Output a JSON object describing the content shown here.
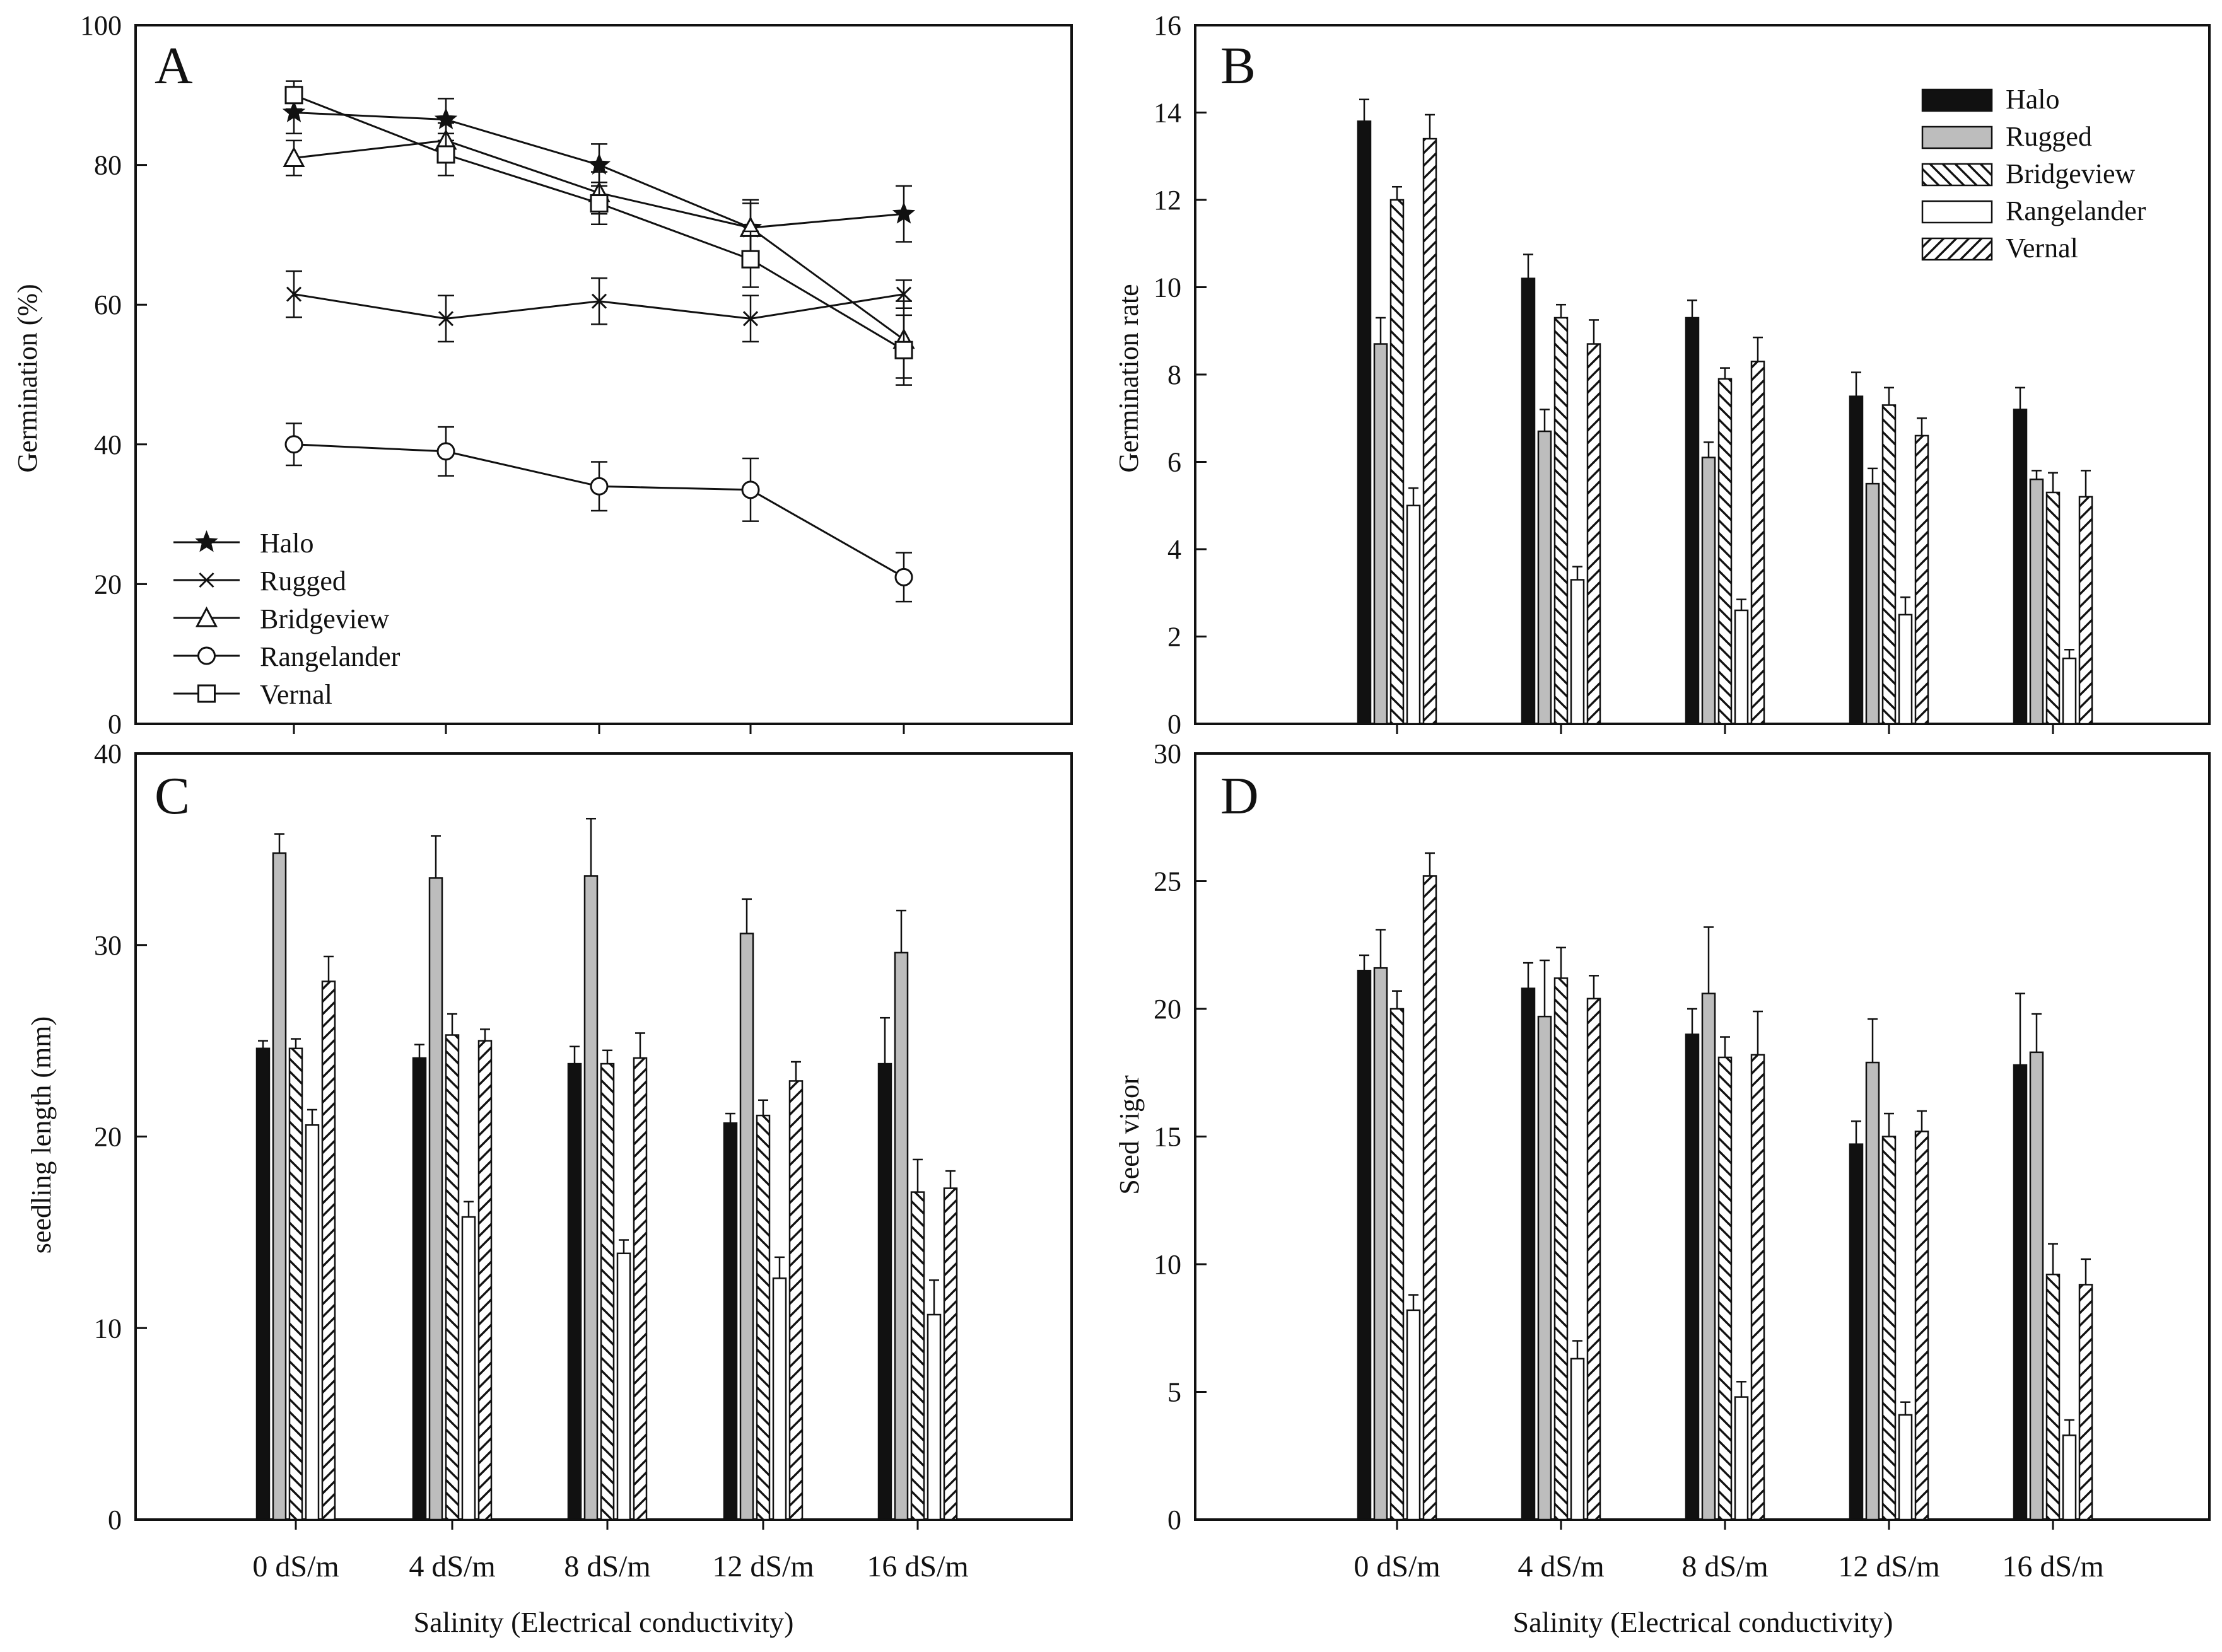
{
  "xlabel": "Salinity (Electrical conductivity)",
  "cultivars": [
    "Halo",
    "Rugged",
    "Bridgeview",
    "Rangelander",
    "Vernal"
  ],
  "colors": {
    "ink": "#111111",
    "gray_fill": "#bdbdbd",
    "white": "#ffffff"
  },
  "chart_data": [
    {
      "panel": "A",
      "type": "line",
      "ylabel": "Germination (%)",
      "ylim": [
        0,
        100
      ],
      "yticks": [
        0,
        20,
        40,
        60,
        80,
        100
      ],
      "categories": [
        "0 dS/m",
        "4 dS/m",
        "8 dS/m",
        "12 dS/m",
        "16 dS/m"
      ],
      "legend_position": "bottom-left",
      "series": [
        {
          "name": "Halo",
          "marker": "star",
          "values": [
            87.5,
            86.5,
            80,
            71,
            73
          ],
          "errors": [
            3,
            3,
            3,
            4,
            4
          ]
        },
        {
          "name": "Rugged",
          "marker": "x",
          "values": [
            61.5,
            58,
            60.5,
            58,
            61.5
          ],
          "errors": [
            3.3,
            3.3,
            3.3,
            3.3,
            2
          ]
        },
        {
          "name": "Bridgeview",
          "marker": "triangle",
          "values": [
            81,
            83.5,
            76,
            71,
            55
          ],
          "errors": [
            2.5,
            2.5,
            3,
            3.5,
            5.5
          ]
        },
        {
          "name": "Rangelander",
          "marker": "circle",
          "values": [
            40,
            39,
            34,
            33.5,
            21
          ],
          "errors": [
            3,
            3.5,
            3.5,
            4.5,
            3.5
          ]
        },
        {
          "name": "Vernal",
          "marker": "square",
          "values": [
            90,
            81.5,
            74.5,
            66.5,
            53.5
          ],
          "errors": [
            2,
            3,
            3,
            4,
            5
          ]
        }
      ]
    },
    {
      "panel": "B",
      "type": "bar",
      "ylabel": "Germination rate",
      "ylim": [
        0,
        16
      ],
      "yticks": [
        0,
        2,
        4,
        6,
        8,
        10,
        12,
        14,
        16
      ],
      "categories": [
        "0 dS/m",
        "4 dS/m",
        "8 dS/m",
        "12 dS/m",
        "16 dS/m"
      ],
      "legend_position": "top-right",
      "series": [
        {
          "name": "Halo",
          "values": [
            13.8,
            10.2,
            9.3,
            7.5,
            7.2
          ],
          "errors": [
            0.5,
            0.55,
            0.4,
            0.55,
            0.5
          ]
        },
        {
          "name": "Rugged",
          "values": [
            8.7,
            6.7,
            6.1,
            5.5,
            5.6
          ],
          "errors": [
            0.6,
            0.5,
            0.35,
            0.35,
            0.2
          ]
        },
        {
          "name": "Bridgeview",
          "values": [
            12.0,
            9.3,
            7.9,
            7.3,
            5.3
          ],
          "errors": [
            0.3,
            0.3,
            0.25,
            0.4,
            0.45
          ]
        },
        {
          "name": "Rangelander",
          "values": [
            5.0,
            3.3,
            2.6,
            2.5,
            1.5
          ],
          "errors": [
            0.4,
            0.3,
            0.25,
            0.4,
            0.2
          ]
        },
        {
          "name": "Vernal",
          "values": [
            13.4,
            8.7,
            8.3,
            6.6,
            5.2
          ],
          "errors": [
            0.55,
            0.55,
            0.55,
            0.4,
            0.6
          ]
        }
      ]
    },
    {
      "panel": "C",
      "type": "bar",
      "ylabel": "seedling length (mm)",
      "ylim": [
        0,
        40
      ],
      "yticks": [
        0,
        10,
        20,
        30,
        40
      ],
      "categories": [
        "0 dS/m",
        "4 dS/m",
        "8 dS/m",
        "12 dS/m",
        "16 dS/m"
      ],
      "series": [
        {
          "name": "Halo",
          "values": [
            24.6,
            24.1,
            23.8,
            20.7,
            23.8
          ],
          "errors": [
            0.4,
            0.7,
            0.9,
            0.5,
            2.4
          ]
        },
        {
          "name": "Rugged",
          "values": [
            34.8,
            33.5,
            33.6,
            30.6,
            29.6
          ],
          "errors": [
            1.0,
            2.2,
            3.0,
            1.8,
            2.2
          ]
        },
        {
          "name": "Bridgeview",
          "values": [
            24.6,
            25.3,
            23.8,
            21.1,
            17.1
          ],
          "errors": [
            0.5,
            1.1,
            0.7,
            0.8,
            1.7
          ]
        },
        {
          "name": "Rangelander",
          "values": [
            20.6,
            15.8,
            13.9,
            12.6,
            10.7
          ],
          "errors": [
            0.8,
            0.8,
            0.7,
            1.1,
            1.8
          ]
        },
        {
          "name": "Vernal",
          "values": [
            28.1,
            25.0,
            24.1,
            22.9,
            17.3
          ],
          "errors": [
            1.3,
            0.6,
            1.3,
            1.0,
            0.9
          ]
        }
      ]
    },
    {
      "panel": "D",
      "type": "bar",
      "ylabel": "Seed vigor",
      "ylim": [
        0,
        30
      ],
      "yticks": [
        0,
        5,
        10,
        15,
        20,
        25,
        30
      ],
      "categories": [
        "0 dS/m",
        "4 dS/m",
        "8 dS/m",
        "12 dS/m",
        "16 dS/m"
      ],
      "series": [
        {
          "name": "Halo",
          "values": [
            21.5,
            20.8,
            19.0,
            14.7,
            17.8
          ],
          "errors": [
            0.6,
            1.0,
            1.0,
            0.9,
            2.8
          ]
        },
        {
          "name": "Rugged",
          "values": [
            21.6,
            19.7,
            20.6,
            17.9,
            18.3
          ],
          "errors": [
            1.5,
            2.2,
            2.6,
            1.7,
            1.5
          ]
        },
        {
          "name": "Bridgeview",
          "values": [
            20.0,
            21.2,
            18.1,
            15.0,
            9.6
          ],
          "errors": [
            0.7,
            1.2,
            0.8,
            0.9,
            1.2
          ]
        },
        {
          "name": "Rangelander",
          "values": [
            8.2,
            6.3,
            4.8,
            4.1,
            3.3
          ],
          "errors": [
            0.6,
            0.7,
            0.6,
            0.5,
            0.6
          ]
        },
        {
          "name": "Vernal",
          "values": [
            25.2,
            20.4,
            18.2,
            15.2,
            9.2
          ],
          "errors": [
            0.9,
            0.9,
            1.7,
            0.8,
            1.0
          ]
        }
      ]
    }
  ]
}
